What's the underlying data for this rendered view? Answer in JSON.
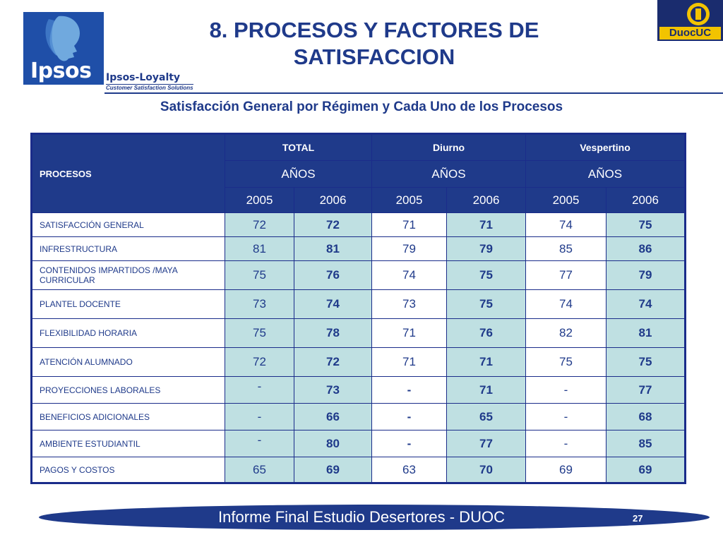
{
  "header": {
    "title": "8. PROCESOS Y FACTORES DE SATISFACCION",
    "subtitle": "Satisfacción General por Régimen y Cada Uno de los Procesos",
    "logo_left_text": "Ipsos",
    "logo_left_sub1": "Ipsos-Loyalty",
    "logo_left_sub2": "Customer Satisfaction Solutions",
    "logo_right_text": "DuocUC"
  },
  "table": {
    "row_header": "PROCESOS",
    "groups": [
      "TOTAL",
      "Diurno",
      "Vespertino"
    ],
    "years_label": "AÑOS",
    "years": [
      "2005",
      "2006",
      "2005",
      "2006",
      "2005",
      "2006"
    ],
    "rows": [
      {
        "label": "SATISFACCIÓN GENERAL",
        "values": [
          "72",
          "72",
          "71",
          "71",
          "74",
          "75"
        ]
      },
      {
        "label": "INFRESTRUCTURA",
        "values": [
          "81",
          "81",
          "79",
          "79",
          "85",
          "86"
        ]
      },
      {
        "label": "CONTENIDOS IMPARTIDOS /MAYA CURRICULAR",
        "values": [
          "75",
          "76",
          "74",
          "75",
          "77",
          "79"
        ]
      },
      {
        "label": "PLANTEL DOCENTE",
        "values": [
          "73",
          "74",
          "73",
          "75",
          "74",
          "74"
        ]
      },
      {
        "label": "FLEXIBILIDAD HORARIA",
        "values": [
          "75",
          "78",
          "71",
          "76",
          "82",
          "81"
        ]
      },
      {
        "label": "ATENCIÓN ALUMNADO",
        "values": [
          "72",
          "72",
          "71",
          "71",
          "75",
          "75"
        ]
      },
      {
        "label": "PROYECCIONES LABORALES",
        "values": [
          "-",
          "73",
          "-",
          "71",
          "-",
          "77"
        ]
      },
      {
        "label": "BENEFICIOS ADICIONALES",
        "values": [
          "-",
          "66",
          "-",
          "65",
          "-",
          "68"
        ]
      },
      {
        "label": "AMBIENTE ESTUDIANTIL",
        "values": [
          "-",
          "80",
          "-",
          "77",
          "-",
          "85"
        ]
      },
      {
        "label": "PAGOS Y COSTOS",
        "values": [
          "65",
          "69",
          "63",
          "70",
          "69",
          "69"
        ]
      }
    ]
  },
  "footer": {
    "text": "Informe Final Estudio Desertores - DUOC",
    "page": "27"
  },
  "colors": {
    "accent": "#1f3a8a",
    "cell_teal": "#bfe0e2",
    "logo_yellow": "#f2c300"
  }
}
